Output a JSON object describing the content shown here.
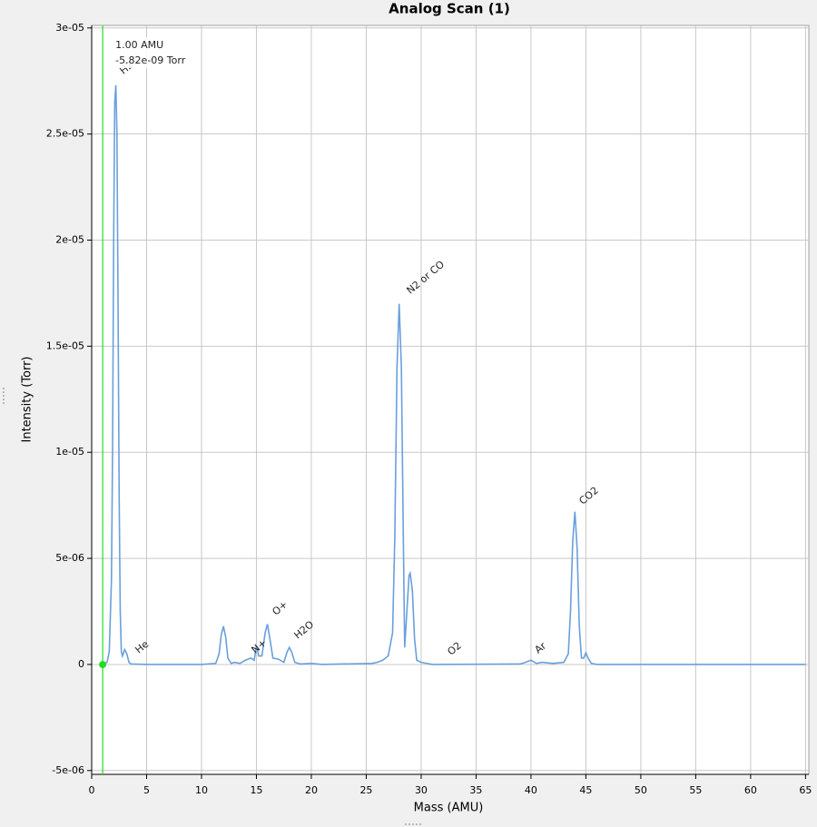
{
  "chart_data": {
    "type": "line",
    "title": "Analog Scan (1)",
    "x_label": "Mass (AMU)",
    "y_label": "Intensity (Torr)",
    "xlim": [
      0,
      65.3
    ],
    "ylim": [
      -5.18e-06,
      3.012e-05
    ],
    "xticks": [
      0,
      5,
      10,
      15,
      20,
      25,
      30,
      35,
      40,
      45,
      50,
      55,
      60,
      65
    ],
    "yticks": [
      {
        "value": 3e-05,
        "label": "3e-05"
      },
      {
        "value": 2.5e-05,
        "label": "2.5e-05"
      },
      {
        "value": 2e-05,
        "label": "2e-05"
      },
      {
        "value": 1.5e-05,
        "label": "1.5e-05"
      },
      {
        "value": 1e-05,
        "label": "1e-05"
      },
      {
        "value": 5e-06,
        "label": "5e-06"
      },
      0,
      {
        "value": -5e-06,
        "label": "-5e-06"
      }
    ],
    "grid": true,
    "x": [
      1.0,
      1.4,
      1.6,
      1.8,
      1.9,
      2.0,
      2.1,
      2.2,
      2.3,
      2.4,
      2.5,
      2.6,
      2.7,
      2.8,
      3.0,
      3.2,
      3.4,
      3.6,
      5,
      10,
      11.3,
      11.6,
      11.8,
      12.0,
      12.2,
      12.4,
      12.7,
      13.0,
      13.5,
      14.0,
      14.5,
      14.8,
      15.0,
      15.2,
      15.5,
      15.8,
      16.0,
      16.2,
      16.5,
      17.0,
      17.5,
      17.8,
      18.0,
      18.2,
      18.5,
      19.0,
      20.0,
      21,
      25.5,
      26.0,
      26.5,
      27.0,
      27.4,
      27.6,
      27.8,
      28.0,
      28.2,
      28.4,
      28.5,
      28.7,
      28.9,
      29.0,
      29.2,
      29.4,
      29.6,
      30.0,
      30.5,
      31,
      39.0,
      39.5,
      40.0,
      40.5,
      41.0,
      42,
      43.0,
      43.4,
      43.6,
      43.8,
      44.0,
      44.2,
      44.4,
      44.6,
      44.8,
      45.0,
      45.2,
      45.5,
      46,
      65
    ],
    "series": [
      {
        "color": "#6a9fdc",
        "values": [
          -6e-09,
          1e-07,
          6e-07,
          4e-06,
          1e-05,
          2e-05,
          2.65e-05,
          2.73e-05,
          2.5e-05,
          1.7e-05,
          8e-06,
          2.5e-06,
          6e-07,
          4e-07,
          7e-07,
          5e-07,
          1e-07,
          2e-08,
          0,
          0,
          5e-08,
          5e-07,
          1.4e-06,
          1.8e-06,
          1.3e-06,
          3e-07,
          5e-08,
          1e-07,
          5e-08,
          2e-07,
          3e-07,
          2e-07,
          9e-07,
          4e-07,
          4e-07,
          1.5e-06,
          1.9e-06,
          1.3e-06,
          3e-07,
          2.5e-07,
          1e-07,
          6e-07,
          8e-07,
          6e-07,
          1e-07,
          2e-08,
          5e-08,
          0,
          5e-08,
          1e-07,
          2e-07,
          4e-07,
          1.5e-06,
          6e-06,
          1.4e-05,
          1.7e-05,
          1.4e-05,
          5e-06,
          8e-07,
          2.5e-06,
          4.2e-06,
          4.3e-06,
          3.5e-06,
          1.2e-06,
          2e-07,
          1e-07,
          5e-08,
          0,
          2e-08,
          1e-07,
          2e-07,
          5e-08,
          1e-07,
          5e-08,
          1e-07,
          5e-07,
          2.5e-06,
          5.8e-06,
          7.2e-06,
          5.5e-06,
          1.8e-06,
          3e-07,
          3e-07,
          5.5e-07,
          3e-07,
          5e-08,
          0,
          0
        ]
      }
    ],
    "annotations": [
      "H2",
      "He",
      "N+",
      "O+",
      "H2O",
      "N2 or CO",
      "O2",
      "Ar",
      "CO2"
    ],
    "cursor": {
      "x": 1.0,
      "value": -5.82e-09,
      "x_label": "1.00 AMU",
      "value_label": "-5.82e-09 Torr",
      "color": "#22dd22"
    }
  }
}
